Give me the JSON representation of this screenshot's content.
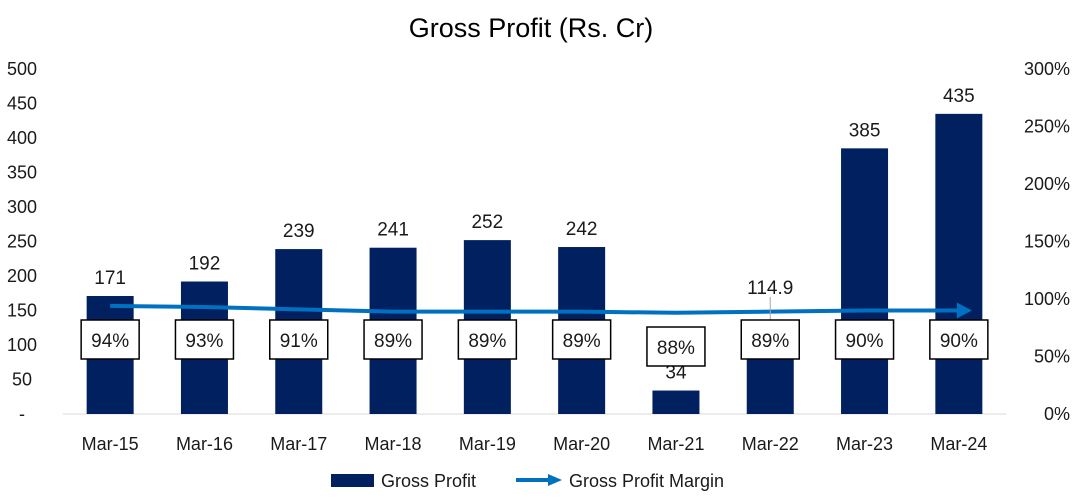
{
  "chart_data": {
    "type": "bar",
    "title": "Gross Profit (Rs. Cr)",
    "categories": [
      "Mar-15",
      "Mar-16",
      "Mar-17",
      "Mar-18",
      "Mar-19",
      "Mar-20",
      "Mar-21",
      "Mar-22",
      "Mar-23",
      "Mar-24"
    ],
    "series": [
      {
        "name": "Gross Profit",
        "type": "bar",
        "axis": "left",
        "color": "#002060",
        "values": [
          171,
          192,
          239,
          241,
          252,
          242,
          34,
          114.9,
          385,
          435
        ],
        "data_labels": [
          "171",
          "192",
          "239",
          "241",
          "252",
          "242",
          "34",
          "114.9",
          "385",
          "435"
        ]
      },
      {
        "name": "Gross Profit Margin",
        "type": "line",
        "axis": "right",
        "color": "#0070C0",
        "values": [
          94,
          93,
          91,
          89,
          89,
          89,
          88,
          89,
          90,
          90
        ],
        "data_labels": [
          "94%",
          "93%",
          "91%",
          "89%",
          "89%",
          "89%",
          "88%",
          "89%",
          "90%",
          "90%"
        ]
      }
    ],
    "y_left": {
      "min": 0,
      "max": 500,
      "ticks": [
        0,
        50,
        100,
        150,
        200,
        250,
        300,
        350,
        400,
        450,
        500
      ],
      "tick_labels": [
        "-",
        "50",
        "100",
        "150",
        "200",
        "250",
        "300",
        "350",
        "400",
        "450",
        "500"
      ]
    },
    "y_right": {
      "min": 0,
      "max": 300,
      "ticks": [
        0,
        50,
        100,
        150,
        200,
        250,
        300
      ],
      "tick_labels": [
        "0%",
        "50%",
        "100%",
        "150%",
        "200%",
        "250%",
        "300%"
      ]
    },
    "grid": false,
    "legend_position": "bottom"
  }
}
